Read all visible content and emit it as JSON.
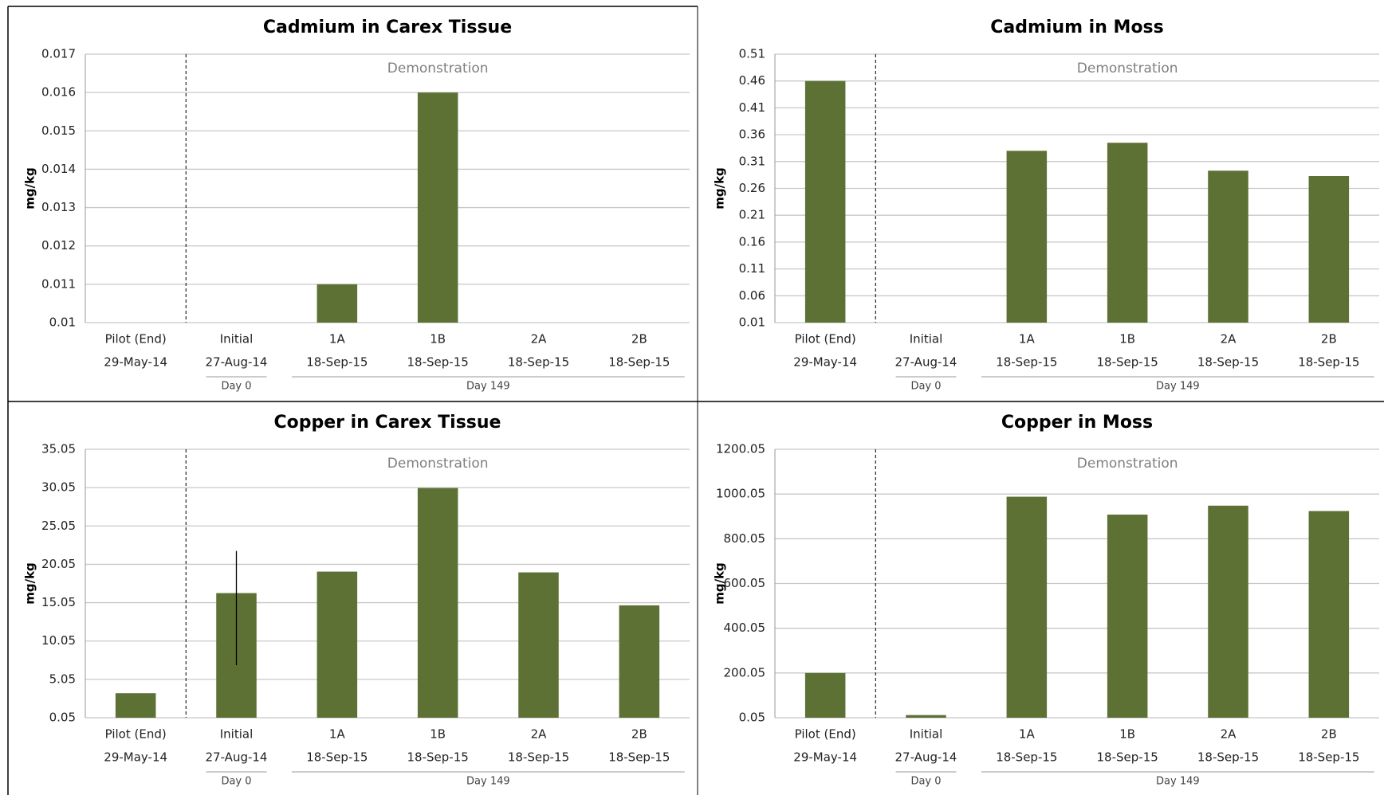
{
  "chart_data": [
    {
      "type": "bar",
      "title": "Cadmium in Carex Tissue",
      "y_label": "mg/kg",
      "annotation": "Demonstration",
      "categories": [
        "Pilot (End)",
        "Initial",
        "1A",
        "1B",
        "2A",
        "2B"
      ],
      "dates": [
        "29-May-14",
        "27-Aug-14",
        "18-Sep-15",
        "18-Sep-15",
        "18-Sep-15",
        "18-Sep-15"
      ],
      "groups": [
        {
          "label": "Day 0",
          "span": [
            1,
            1
          ]
        },
        {
          "label": "Day 149",
          "span": [
            2,
            5
          ]
        }
      ],
      "values": [
        null,
        null,
        0.011,
        0.016,
        null,
        null
      ],
      "color": "#5e7135",
      "ylim": [
        0.01,
        0.017
      ],
      "yticks": [
        0.01,
        0.011,
        0.012,
        0.013,
        0.014,
        0.015,
        0.016,
        0.017
      ],
      "grid": true
    },
    {
      "type": "bar",
      "title": "Cadmium in Moss",
      "y_label": "mg/kg",
      "annotation": "Demonstration",
      "categories": [
        "Pilot (End)",
        "Initial",
        "1A",
        "1B",
        "2A",
        "2B"
      ],
      "dates": [
        "29-May-14",
        "27-Aug-14",
        "18-Sep-15",
        "18-Sep-15",
        "18-Sep-15",
        "18-Sep-15"
      ],
      "groups": [
        {
          "label": "Day 0",
          "span": [
            1,
            1
          ]
        },
        {
          "label": "Day 149",
          "span": [
            2,
            5
          ]
        }
      ],
      "values": [
        0.46,
        null,
        0.33,
        0.345,
        0.293,
        0.283
      ],
      "color": "#5e7135",
      "ylim": [
        0.01,
        0.51
      ],
      "yticks": [
        0.01,
        0.06,
        0.11,
        0.16,
        0.21,
        0.26,
        0.31,
        0.36,
        0.41,
        0.46,
        0.51
      ],
      "grid": true
    },
    {
      "type": "bar",
      "title": "Copper in Carex Tissue",
      "y_label": "mg/kg",
      "annotation": "Demonstration",
      "categories": [
        "Pilot (End)",
        "Initial",
        "1A",
        "1B",
        "2A",
        "2B"
      ],
      "dates": [
        "29-May-14",
        "27-Aug-14",
        "18-Sep-15",
        "18-Sep-15",
        "18-Sep-15",
        "18-Sep-15"
      ],
      "groups": [
        {
          "label": "Day 0",
          "span": [
            1,
            1
          ]
        },
        {
          "label": "Day 149",
          "span": [
            2,
            5
          ]
        }
      ],
      "values": [
        3.25,
        16.3,
        19.1,
        30.0,
        19.0,
        14.7
      ],
      "color": "#5e7135",
      "error_plus": [
        null,
        5.5,
        null,
        null,
        null,
        null
      ],
      "error_minus": [
        null,
        9.4,
        null,
        null,
        null,
        null
      ],
      "ylim": [
        0.05,
        35.05
      ],
      "yticks": [
        0.05,
        5.05,
        10.05,
        15.05,
        20.05,
        25.05,
        30.05,
        35.05
      ],
      "grid": true
    },
    {
      "type": "bar",
      "title": "Copper in Moss",
      "y_label": "mg/kg",
      "annotation": "Demonstration",
      "categories": [
        "Pilot (End)",
        "Initial",
        "1A",
        "1B",
        "2A",
        "2B"
      ],
      "dates": [
        "29-May-14",
        "27-Aug-14",
        "18-Sep-15",
        "18-Sep-15",
        "18-Sep-15",
        "18-Sep-15"
      ],
      "groups": [
        {
          "label": "Day 0",
          "span": [
            1,
            1
          ]
        },
        {
          "label": "Day 149",
          "span": [
            2,
            5
          ]
        }
      ],
      "values": [
        200,
        12,
        988,
        908,
        948,
        924
      ],
      "color": "#5e7135",
      "ylim": [
        0.05,
        1200.05
      ],
      "yticks": [
        0.05,
        200.05,
        400.05,
        600.05,
        800.05,
        1000.05,
        1200.05
      ],
      "grid": true
    }
  ]
}
